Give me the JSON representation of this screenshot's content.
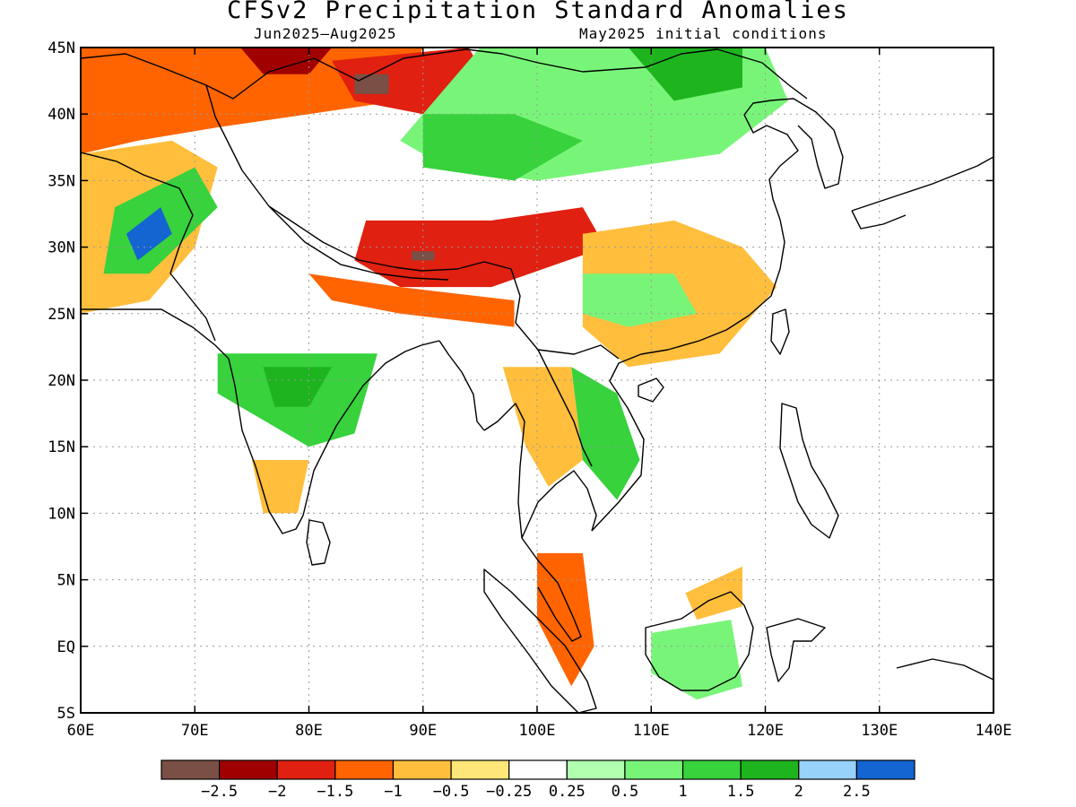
{
  "title": "CFSv2 Precipitation Standard Anomalies",
  "subtitle_left": "Jun2025–Aug2025",
  "subtitle_right": "May2025 initial conditions",
  "map": {
    "lon_range": [
      60,
      140
    ],
    "lat_range": [
      -5,
      45
    ],
    "lon_ticks": [
      {
        "value": 60,
        "label": "60E"
      },
      {
        "value": 70,
        "label": "70E"
      },
      {
        "value": 80,
        "label": "80E"
      },
      {
        "value": 90,
        "label": "90E"
      },
      {
        "value": 100,
        "label": "100E"
      },
      {
        "value": 110,
        "label": "110E"
      },
      {
        "value": 120,
        "label": "120E"
      },
      {
        "value": 130,
        "label": "130E"
      },
      {
        "value": 140,
        "label": "140E"
      }
    ],
    "lat_ticks": [
      {
        "value": 45,
        "label": "45N"
      },
      {
        "value": 40,
        "label": "40N"
      },
      {
        "value": 35,
        "label": "35N"
      },
      {
        "value": 30,
        "label": "30N"
      },
      {
        "value": 25,
        "label": "25N"
      },
      {
        "value": 20,
        "label": "20N"
      },
      {
        "value": 15,
        "label": "15N"
      },
      {
        "value": 10,
        "label": "10N"
      },
      {
        "value": 5,
        "label": "5N"
      },
      {
        "value": 0,
        "label": "EQ"
      },
      {
        "value": -5,
        "label": "5S"
      }
    ],
    "grid": "dotted",
    "coastlines": true,
    "anomaly_regions": [
      {
        "name": "central-asia-dry",
        "level": -1,
        "points": [
          [
            60,
            45
          ],
          [
            90,
            45
          ],
          [
            88,
            41
          ],
          [
            80,
            40
          ],
          [
            72,
            39
          ],
          [
            65,
            38
          ],
          [
            60,
            37
          ]
        ]
      },
      {
        "name": "kazakh-dry-core",
        "level": -2,
        "points": [
          [
            74,
            45
          ],
          [
            82,
            45
          ],
          [
            80,
            43
          ],
          [
            76,
            43
          ]
        ]
      },
      {
        "name": "tarim-dry",
        "level": -1.5,
        "points": [
          [
            82,
            44
          ],
          [
            94,
            45
          ],
          [
            96,
            42
          ],
          [
            90,
            40
          ],
          [
            84,
            41
          ]
        ]
      },
      {
        "name": "tarim-dry-core",
        "level": -2.5,
        "points": [
          [
            84,
            43
          ],
          [
            87,
            43
          ],
          [
            87,
            41.5
          ],
          [
            84,
            41.5
          ]
        ]
      },
      {
        "name": "afghan-dry",
        "level": -0.5,
        "points": [
          [
            60,
            37
          ],
          [
            68,
            38
          ],
          [
            72,
            36
          ],
          [
            70,
            30
          ],
          [
            66,
            26
          ],
          [
            60,
            25
          ]
        ]
      },
      {
        "name": "mongolia-wet",
        "level": 0.5,
        "points": [
          [
            95,
            45
          ],
          [
            120,
            45
          ],
          [
            122,
            41
          ],
          [
            116,
            37
          ],
          [
            108,
            36
          ],
          [
            100,
            35
          ],
          [
            92,
            36
          ],
          [
            88,
            38
          ],
          [
            92,
            42
          ]
        ]
      },
      {
        "name": "mongolia-wet-core",
        "level": 1.5,
        "points": [
          [
            108,
            45
          ],
          [
            118,
            45
          ],
          [
            118,
            42
          ],
          [
            112,
            41
          ]
        ]
      },
      {
        "name": "qinghai-wet",
        "level": 1,
        "points": [
          [
            90,
            40
          ],
          [
            98,
            40
          ],
          [
            104,
            38
          ],
          [
            98,
            35
          ],
          [
            90,
            36
          ]
        ]
      },
      {
        "name": "afghan-wet",
        "level": 1,
        "points": [
          [
            63,
            33
          ],
          [
            70,
            36
          ],
          [
            72,
            33
          ],
          [
            66,
            28
          ],
          [
            62,
            28
          ]
        ]
      },
      {
        "name": "afghan-wet-core",
        "level": 2.5,
        "points": [
          [
            64,
            31
          ],
          [
            67,
            33
          ],
          [
            68,
            31
          ],
          [
            65,
            29
          ]
        ]
      },
      {
        "name": "tibet-dry",
        "level": -1.5,
        "points": [
          [
            85,
            32
          ],
          [
            96,
            32
          ],
          [
            104,
            33
          ],
          [
            106,
            30
          ],
          [
            96,
            27
          ],
          [
            88,
            27
          ],
          [
            84,
            29
          ]
        ]
      },
      {
        "name": "tibet-dry-core",
        "level": -2.5,
        "points": [
          [
            89,
            29.7
          ],
          [
            91,
            29.7
          ],
          [
            91,
            29
          ],
          [
            89,
            29
          ]
        ]
      },
      {
        "name": "south-china-dry",
        "level": -0.5,
        "points": [
          [
            104,
            31
          ],
          [
            112,
            32
          ],
          [
            118,
            30
          ],
          [
            121,
            27
          ],
          [
            116,
            22
          ],
          [
            108,
            21
          ],
          [
            104,
            24
          ]
        ]
      },
      {
        "name": "south-china-wet",
        "level": 0.5,
        "points": [
          [
            104,
            28
          ],
          [
            112,
            28
          ],
          [
            114,
            25
          ],
          [
            108,
            24
          ],
          [
            104,
            25
          ]
        ]
      },
      {
        "name": "himalaya-dry",
        "level": -1,
        "points": [
          [
            80,
            28
          ],
          [
            88,
            27
          ],
          [
            98,
            26
          ],
          [
            98,
            24
          ],
          [
            88,
            25
          ],
          [
            82,
            26
          ]
        ]
      },
      {
        "name": "india-wet",
        "level": 1,
        "points": [
          [
            72,
            22
          ],
          [
            86,
            22
          ],
          [
            84,
            16
          ],
          [
            80,
            15
          ],
          [
            76,
            17
          ],
          [
            72,
            19
          ]
        ]
      },
      {
        "name": "india-wet-core",
        "level": 1.5,
        "points": [
          [
            76,
            21
          ],
          [
            82,
            21
          ],
          [
            80,
            18
          ],
          [
            77,
            18
          ]
        ]
      },
      {
        "name": "india-south-dry",
        "level": -0.5,
        "points": [
          [
            75,
            14
          ],
          [
            80,
            14
          ],
          [
            79,
            10
          ],
          [
            76,
            10
          ]
        ]
      },
      {
        "name": "indochina-dry",
        "level": -0.5,
        "points": [
          [
            97,
            21
          ],
          [
            103,
            21
          ],
          [
            104,
            14
          ],
          [
            101,
            12
          ],
          [
            99,
            15
          ]
        ]
      },
      {
        "name": "vietnam-wet",
        "level": 1,
        "points": [
          [
            103,
            21
          ],
          [
            107,
            19
          ],
          [
            109,
            14
          ],
          [
            107,
            11
          ],
          [
            104,
            14
          ]
        ]
      },
      {
        "name": "malaya-dry",
        "level": -1,
        "points": [
          [
            100,
            7
          ],
          [
            104,
            7
          ],
          [
            105,
            0
          ],
          [
            103,
            -3
          ],
          [
            100,
            2
          ]
        ]
      },
      {
        "name": "borneo-wet",
        "level": 0.5,
        "points": [
          [
            110,
            1
          ],
          [
            117,
            2
          ],
          [
            118,
            -3
          ],
          [
            114,
            -4
          ],
          [
            110,
            -2
          ]
        ]
      },
      {
        "name": "borneo-dry",
        "level": -0.5,
        "points": [
          [
            113,
            4
          ],
          [
            118,
            6
          ],
          [
            118,
            3
          ],
          [
            114,
            2
          ]
        ]
      }
    ]
  },
  "colorbar": {
    "colors": [
      "#7a4f45",
      "#a00000",
      "#e02010",
      "#ff6400",
      "#ffbe3c",
      "#ffe678",
      "#ffffff",
      "#afffaf",
      "#78f578",
      "#37d23c",
      "#1eb41e",
      "#96d2fa",
      "#1464d2"
    ],
    "labels": [
      "−2.5",
      "−2",
      "−1.5",
      "−1",
      "−0.5",
      "−0.25",
      "0.25",
      "0.5",
      "1",
      "1.5",
      "2",
      "2.5"
    ]
  }
}
